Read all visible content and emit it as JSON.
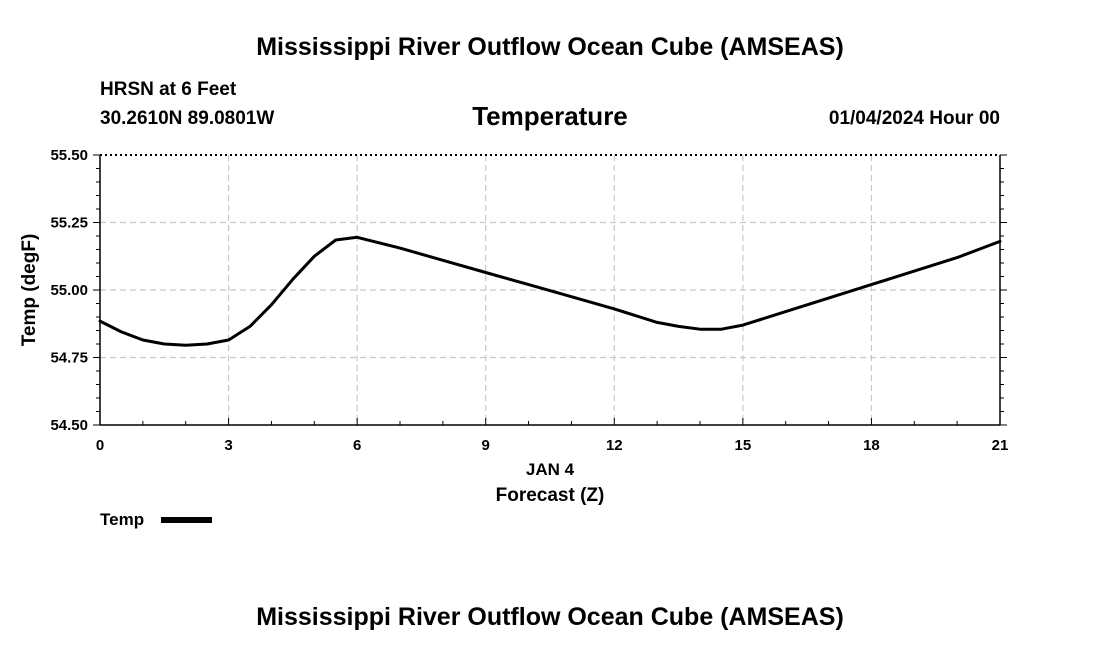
{
  "header": {
    "title": "Mississippi River Outflow Ocean Cube (AMSEAS)",
    "station": "HRSN at 6 Feet",
    "coords": "30.2610N  89.0801W",
    "variable": "Temperature",
    "datetime": "01/04/2024 Hour 00"
  },
  "footer": {
    "title": "Mississippi River Outflow Ocean Cube (AMSEAS)"
  },
  "chart_data": {
    "type": "line",
    "title": "Temperature",
    "xlabel": "Forecast (Z)",
    "xlabel_date": "JAN 4",
    "ylabel": "Temp (degF)",
    "xlim": [
      0,
      21
    ],
    "ylim": [
      54.5,
      55.5
    ],
    "x_ticks": [
      0,
      3,
      6,
      9,
      12,
      15,
      18,
      21
    ],
    "y_ticks": [
      54.5,
      54.75,
      55.0,
      55.25,
      55.5
    ],
    "y_tick_labels": [
      "54.50",
      "54.75",
      "55.00",
      "55.25",
      "55.50"
    ],
    "grid": true,
    "legend": "bottom-left",
    "series": [
      {
        "name": "Temp",
        "color": "#000000",
        "x": [
          0,
          0.5,
          1,
          1.5,
          2,
          2.5,
          3,
          3.5,
          4,
          4.5,
          5,
          5.5,
          6,
          7,
          8,
          9,
          10,
          11,
          12,
          13,
          13.5,
          14,
          14.5,
          15,
          16,
          17,
          18,
          19,
          20,
          21
        ],
        "y": [
          54.885,
          54.845,
          54.815,
          54.8,
          54.795,
          54.8,
          54.815,
          54.865,
          54.945,
          55.04,
          55.125,
          55.185,
          55.195,
          55.155,
          55.11,
          55.065,
          55.02,
          54.975,
          54.93,
          54.88,
          54.865,
          54.855,
          54.855,
          54.87,
          54.92,
          54.97,
          55.02,
          55.07,
          55.12,
          55.18
        ]
      }
    ]
  }
}
